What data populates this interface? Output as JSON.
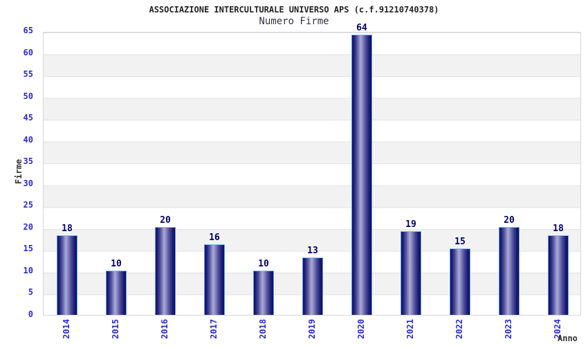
{
  "chart_data": {
    "type": "bar",
    "title": "ASSOCIAZIONE INTERCULTURALE UNIVERSO APS (c.f.91210740378)",
    "subtitle": "Numero Firme",
    "xlabel": "Anno",
    "ylabel": "Firme",
    "categories": [
      "2014",
      "2015",
      "2016",
      "2017",
      "2018",
      "2019",
      "2020",
      "2021",
      "2022",
      "2023",
      "2024"
    ],
    "values": [
      18,
      10,
      20,
      16,
      10,
      13,
      64,
      19,
      15,
      20,
      18
    ],
    "value_labels": [
      "18",
      "10",
      "20",
      "16",
      "10",
      "13",
      "64",
      "19",
      "15",
      "20",
      "18"
    ],
    "ylim": [
      0,
      65
    ],
    "ytick_step": 5,
    "yticks": [
      0,
      5,
      10,
      15,
      20,
      25,
      30,
      35,
      40,
      45,
      50,
      55,
      60,
      65
    ],
    "grid": "horizontal-bands",
    "legend_position": "none"
  },
  "colors": {
    "background": "#ffffff",
    "title_text": "#222222",
    "subtitle_text": "#333340",
    "axis_tick_text": "#2a2ace",
    "value_label_text": "#000066",
    "axis_title_text": "#333333",
    "band_gray": "#f2f2f2",
    "gridline": "#e2e2e2",
    "plot_border": "#d6d6d6",
    "bar_border": "#5da0e6",
    "bar_dark": "#10105f",
    "bar_highlight": "#a9a9d8"
  }
}
